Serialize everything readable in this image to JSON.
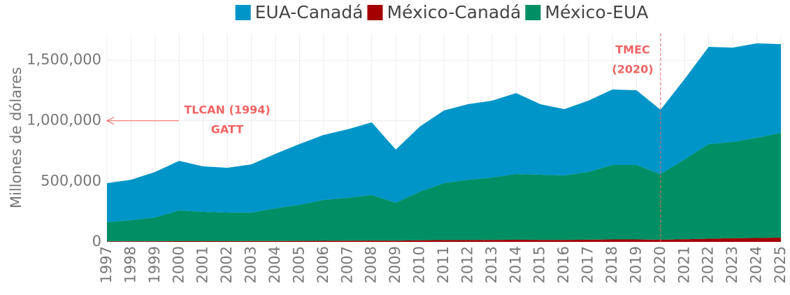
{
  "chart_data": {
    "type": "area",
    "stacked": true,
    "y_label": "Millones de dólares",
    "categories": [
      "1997",
      "1998",
      "1999",
      "2000",
      "2001",
      "2002",
      "2003",
      "2004",
      "2005",
      "2006",
      "2007",
      "2008",
      "2009",
      "2010",
      "2011",
      "2012",
      "2013",
      "2014",
      "2015",
      "2016",
      "2017",
      "2018",
      "2019",
      "2020",
      "2021",
      "2022",
      "2023",
      "2024",
      "2025"
    ],
    "series": [
      {
        "name": "EUA-Canadá",
        "color": "#0095c8",
        "values": [
          323000,
          334000,
          375000,
          409000,
          375000,
          370000,
          398000,
          450000,
          502000,
          537000,
          565000,
          600000,
          439000,
          537000,
          600000,
          624000,
          635000,
          669000,
          583000,
          548000,
          589000,
          623000,
          617000,
          531000,
          664000,
          802000,
          779000,
          779000,
          733000
        ]
      },
      {
        "name": "México-Canadá",
        "color": "#a50000",
        "values": [
          4000,
          5000,
          5000,
          6000,
          6000,
          6000,
          7000,
          7000,
          8000,
          9000,
          10000,
          11000,
          10000,
          13000,
          15000,
          15000,
          16000,
          17000,
          16000,
          16000,
          18000,
          20000,
          20000,
          17000,
          22000,
          26000,
          30000,
          32000,
          35000
        ]
      },
      {
        "name": "México-EUA",
        "color": "#008f64",
        "values": [
          158000,
          174000,
          197000,
          254000,
          242000,
          236000,
          235000,
          270000,
          298000,
          337000,
          354000,
          376000,
          313000,
          402000,
          470000,
          498000,
          515000,
          543000,
          538000,
          532000,
          559000,
          615000,
          615000,
          543000,
          659000,
          782000,
          795000,
          828000,
          865000
        ]
      }
    ],
    "stack_order": [
      "México-Canadá",
      "México-EUA",
      "EUA-Canadá"
    ],
    "ylim": [
      0,
      1720000
    ],
    "yticks": [
      0,
      {
        "value": 500000,
        "label": "500,000"
      },
      {
        "value": 1000000,
        "label": "1,000,000"
      },
      {
        "value": 1500000,
        "label": "1,500,000"
      }
    ],
    "grid": true,
    "legend": "top",
    "annotations": [
      "TLCAN (1994)",
      "GATT",
      "TMEC",
      "(2020)"
    ],
    "annotation_color": "#f06464"
  }
}
